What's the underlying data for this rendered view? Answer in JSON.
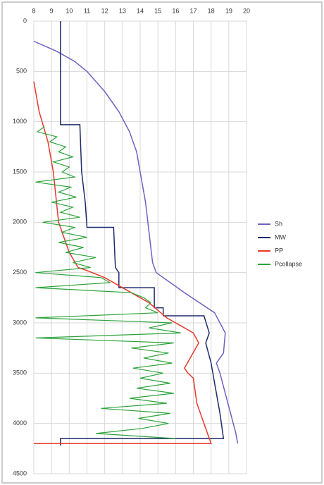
{
  "chart_data": {
    "type": "line",
    "xlim": [
      8,
      20
    ],
    "xticks": [
      8,
      9,
      10,
      11,
      12,
      13,
      14,
      15,
      16,
      17,
      18,
      19,
      20
    ],
    "ylim": [
      0,
      4500
    ],
    "yticks": [
      0,
      500,
      1000,
      1500,
      2000,
      2500,
      3000,
      3500,
      4000,
      4500
    ],
    "y_inverted": true,
    "grid": true,
    "legend": "right",
    "series": [
      {
        "name": "Sh",
        "color": "#7060c0",
        "x": [
          8,
          9.3,
          10.3,
          11.0,
          12.0,
          12.8,
          13.4,
          13.8,
          14.0,
          14.3,
          14.5,
          14.7,
          14.9,
          16.5,
          18.2,
          18.8,
          18.7,
          18.3,
          18.5,
          18.8,
          19.1,
          19.4,
          19.5
        ],
        "y": [
          200,
          300,
          400,
          500,
          700,
          900,
          1100,
          1300,
          1500,
          1800,
          2100,
          2400,
          2500,
          2700,
          2900,
          3100,
          3300,
          3400,
          3500,
          3700,
          3900,
          4100,
          4200
        ]
      },
      {
        "name": "MW",
        "color": "#1f2a6b",
        "x": [
          9.5,
          9.5,
          10.6,
          10.7,
          10.9,
          11.0,
          12.5,
          12.6,
          12.8,
          12.8,
          14.8,
          14.8,
          15.3,
          15.3,
          17.6,
          17.9,
          17.7,
          18.0,
          18.2,
          18.5,
          18.7,
          9.5,
          9.5
        ],
        "y": [
          0,
          1030,
          1030,
          1500,
          1800,
          2050,
          2050,
          2450,
          2500,
          2650,
          2650,
          2850,
          2850,
          2930,
          2930,
          3100,
          3200,
          3400,
          3600,
          3900,
          4150,
          4150,
          4220
        ]
      },
      {
        "name": "PP",
        "color": "#e8382a",
        "x": [
          8,
          8.3,
          8.8,
          9.1,
          9.4,
          10,
          10.5,
          11,
          12,
          13.5,
          14.5,
          15.5,
          17,
          17.3,
          16.5,
          16.7,
          17.0,
          17.2,
          17.6,
          18,
          8
        ],
        "y": [
          600,
          900,
          1200,
          1500,
          2000,
          2300,
          2450,
          2480,
          2550,
          2700,
          2800,
          2950,
          3100,
          3200,
          3450,
          3500,
          3550,
          3800,
          4000,
          4200,
          4200
        ]
      },
      {
        "name": "Pcollapse",
        "color": "#2ca33a",
        "x": [
          8.6,
          8.2,
          9.3,
          8.9,
          9.8,
          9.4,
          10.2,
          9.1,
          10.0,
          9.6,
          10.3,
          8.1,
          10.1,
          9.4,
          10.4,
          9.0,
          10.2,
          9.5,
          10.6,
          8.5,
          10.3,
          9.6,
          11.0,
          9.4,
          10.8,
          9.8,
          11.5,
          10.2,
          11.2,
          8.1,
          11.8,
          12.3,
          8.1,
          13.5,
          14.2,
          14.6,
          14.3,
          15.0,
          8.1,
          15.8,
          14.5,
          16.3,
          8.1,
          15.9,
          13.5,
          15.6,
          14.2,
          15.8,
          13.6,
          15.3,
          14.0,
          15.7,
          13.8,
          15.9,
          13.4,
          15.5,
          11.8,
          15.7,
          13.9,
          15.6,
          14.1,
          11.5,
          16.0
        ],
        "y": [
          1050,
          1100,
          1150,
          1200,
          1250,
          1300,
          1350,
          1400,
          1450,
          1500,
          1550,
          1600,
          1650,
          1700,
          1750,
          1800,
          1850,
          1900,
          1950,
          2000,
          2050,
          2100,
          2150,
          2200,
          2250,
          2300,
          2350,
          2400,
          2450,
          2500,
          2550,
          2600,
          2650,
          2700,
          2750,
          2800,
          2850,
          2900,
          2950,
          3000,
          3050,
          3100,
          3150,
          3200,
          3250,
          3300,
          3350,
          3400,
          3450,
          3500,
          3550,
          3600,
          3650,
          3700,
          3750,
          3800,
          3850,
          3900,
          3950,
          4000,
          4050,
          4100,
          4150
        ]
      }
    ]
  }
}
